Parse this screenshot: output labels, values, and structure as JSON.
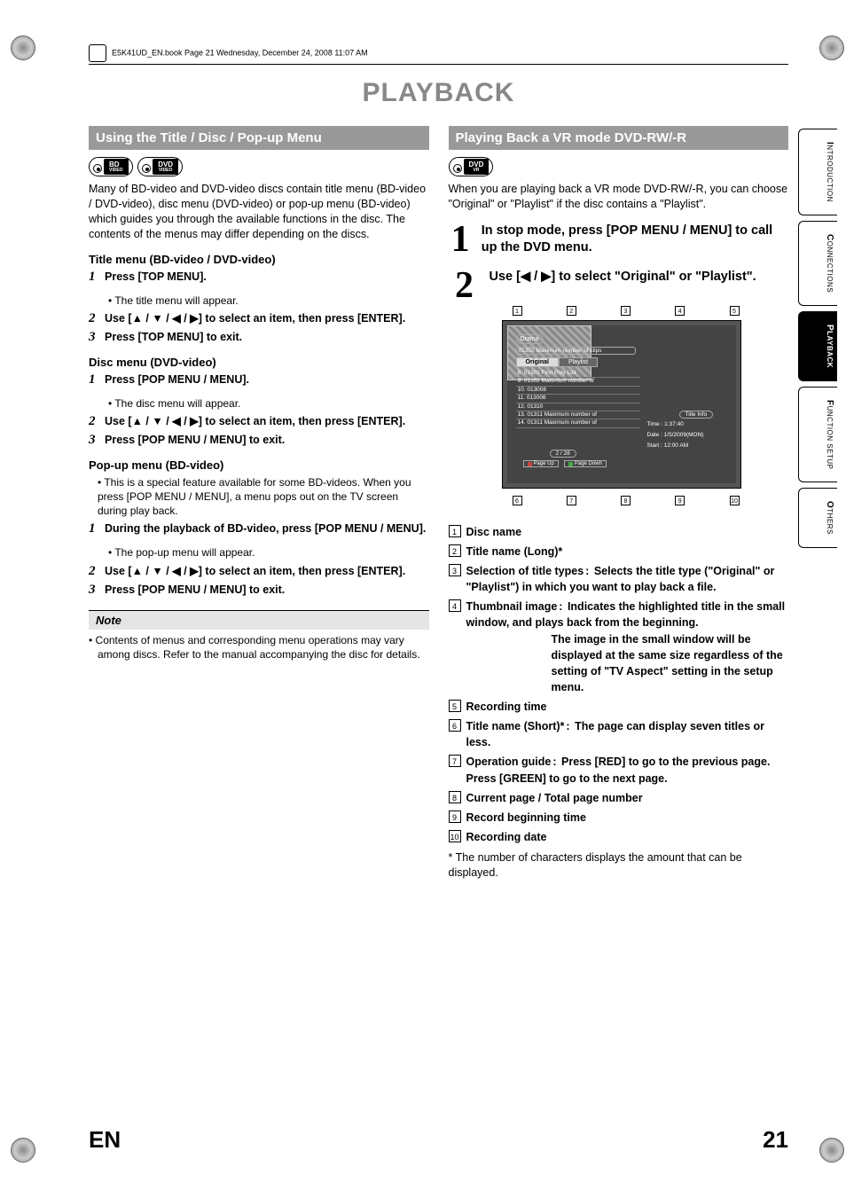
{
  "header": {
    "book_line": "E5K41UD_EN.book  Page 21  Wednesday, December 24, 2008  11:07 AM"
  },
  "main_title": "PLAYBACK",
  "left": {
    "section_title": "Using the Title / Disc / Pop-up Menu",
    "badges": [
      {
        "label": "BD",
        "sub": "VIDEO"
      },
      {
        "label": "DVD",
        "sub": "VIDEO"
      }
    ],
    "intro": "Many of BD-video and DVD-video discs contain title menu (BD-video / DVD-video), disc menu (DVD-video) or pop-up menu (BD-video) which guides you through the available functions in the disc. The contents of the menus may differ depending on the discs.",
    "sections": [
      {
        "heading": "Title menu (BD-video / DVD-video)",
        "steps": [
          {
            "n": "1",
            "text": "Press [TOP MENU].",
            "bullet": "The title menu will appear."
          },
          {
            "n": "2",
            "text": "Use [▲ / ▼ / ◀ / ▶] to select an item, then press [ENTER]."
          },
          {
            "n": "3",
            "text": "Press [TOP MENU] to exit."
          }
        ]
      },
      {
        "heading": "Disc menu (DVD-video)",
        "steps": [
          {
            "n": "1",
            "text": "Press [POP MENU / MENU].",
            "bullet": "The disc menu will appear."
          },
          {
            "n": "2",
            "text": "Use [▲ / ▼ / ◀ / ▶] to select an item, then press [ENTER]."
          },
          {
            "n": "3",
            "text": "Press [POP MENU / MENU] to exit."
          }
        ]
      },
      {
        "heading": "Pop-up menu (BD-video)",
        "pre_bullet": "This is a special feature available for some BD-videos. When you press [POP MENU / MENU], a menu pops out on the TV screen during play back.",
        "steps": [
          {
            "n": "1",
            "text": "During the playback of BD-video, press [POP MENU / MENU].",
            "bullet": "The pop-up menu will appear."
          },
          {
            "n": "2",
            "text": "Use [▲ / ▼ / ◀ / ▶] to select an item, then press [ENTER]."
          },
          {
            "n": "3",
            "text": "Press [POP MENU / MENU] to exit."
          }
        ]
      }
    ],
    "note": {
      "title": "Note",
      "body": "Contents of menus and corresponding menu operations may vary among discs. Refer to the manual accompanying the disc for details."
    }
  },
  "right": {
    "section_title": "Playing Back a VR mode DVD-RW/-R",
    "badge": {
      "label": "DVD",
      "sub": "VR"
    },
    "intro": "When you are playing back a VR mode DVD-RW/-R, you can choose \"Original\" or \"Playlist\" if the disc contains a \"Playlist\".",
    "bigsteps": [
      {
        "n": "1",
        "text": "In stop mode, press [POP MENU / MENU] to call up the DVD menu."
      },
      {
        "n": "2",
        "text": "Use [◀ / ▶] to select \"Original\" or \"Playlist\"."
      }
    ],
    "tv": {
      "disc_name": "Drama",
      "title_long": "01302 Maximum number of clips",
      "tabs": {
        "original": "Original",
        "playlist": "Playlist"
      },
      "list": [
        "8. 01301 First Play List",
        "9. 01302 Maximum number of",
        "10. 013008",
        "11. 013008",
        "12. 01310",
        "13. 01311 Maximum number of",
        "14. 01311 Maximum number of"
      ],
      "pager": "2 / 28",
      "page_up": "Page Up",
      "page_down": "Page Down",
      "title_info": "Title Info",
      "time": "Time   :   1:37:40",
      "date": "Date   :   1/5/2009(MON)",
      "start": "Start   :   12:00 AM",
      "callouts_top": [
        "1",
        "2",
        "3",
        "4",
        "5"
      ],
      "callouts_bot": [
        "6",
        "7",
        "8",
        "9",
        "10"
      ]
    },
    "legend": [
      {
        "n": "1",
        "label": "Disc name"
      },
      {
        "n": "2",
        "label": "Title name (Long)*"
      },
      {
        "n": "3",
        "label": "Selection of title types",
        "desc": "Selects the title type (\"Original\" or \"Playlist\") in which you want to play back a file."
      },
      {
        "n": "4",
        "label": "Thumbnail image",
        "desc": "Indicates the highlighted title in the small window, and plays back from the beginning.",
        "desc2": "The image in the small window will be displayed at the same size regardless of the setting of \"TV Aspect\" setting  in the setup menu."
      },
      {
        "n": "5",
        "label": "Recording time"
      },
      {
        "n": "6",
        "label": "Title name (Short)*",
        "desc": "The page can display seven titles or less."
      },
      {
        "n": "7",
        "label": "Operation guide",
        "desc": "Press [RED] to go to the previous page. Press [GREEN] to go to the next page."
      },
      {
        "n": "8",
        "label": "Current page / Total page number"
      },
      {
        "n": "9",
        "label": "Record beginning time"
      },
      {
        "n": "10",
        "label": "Recording date"
      }
    ],
    "footnote": "* The number of characters displays the amount that can be displayed."
  },
  "side_tabs": [
    {
      "label": "INTRODUCTION",
      "active": false
    },
    {
      "label": "CONNECTIONS",
      "active": false
    },
    {
      "label": "PLAYBACK",
      "active": true
    },
    {
      "label": "FUNCTION SETUP",
      "active": false
    },
    {
      "label": "OTHERS",
      "active": false
    }
  ],
  "footer": {
    "lang": "EN",
    "page": "21"
  },
  "colors": {
    "section_bar_bg": "#999999",
    "section_bar_fg": "#ffffff",
    "title_color": "#888888",
    "note_bg": "#e5e5e5",
    "tv_bg": "#555555"
  }
}
